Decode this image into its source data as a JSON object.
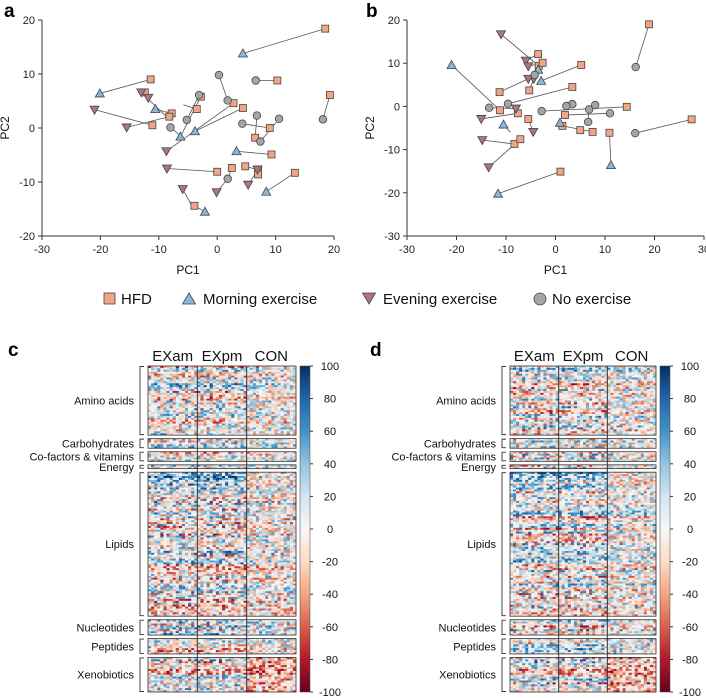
{
  "panel_letters": [
    "a",
    "b",
    "c",
    "d"
  ],
  "legend": {
    "items": [
      {
        "key": "hfd",
        "label": "HFD",
        "marker": "square",
        "color": "#F2A585"
      },
      {
        "key": "am",
        "label": "Morning exercise",
        "marker": "triangle-up",
        "color": "#89B7DA"
      },
      {
        "key": "pm",
        "label": "Evening exercise",
        "marker": "triangle-down",
        "color": "#A9777D"
      },
      {
        "key": "none",
        "label": "No exercise",
        "marker": "circle",
        "color": "#A5A5A5"
      }
    ]
  },
  "chart_data": [
    {
      "panel": "a",
      "type": "scatter",
      "xlabel": "PC1",
      "ylabel": "PC2",
      "xlim": [
        -30,
        20
      ],
      "ylim": [
        -20,
        20
      ],
      "xticks": [
        -30,
        -20,
        -10,
        0,
        10,
        20
      ],
      "yticks": [
        -20,
        -10,
        0,
        10,
        20
      ],
      "pairs": [
        [
          [
            -20.1,
            6.4
          ],
          [
            -11.4,
            9.0
          ]
        ],
        [
          [
            -11.8,
            5.6
          ],
          [
            -12.4,
            6.6
          ]
        ],
        [
          [
            -10.6,
            3.5
          ],
          [
            -7.8,
            2.7
          ]
        ],
        [
          [
            -21,
            3.4
          ],
          [
            -11.1,
            0.5
          ]
        ],
        [
          [
            -15.5,
            0.1
          ],
          [
            -8.2,
            2.1
          ]
        ],
        [
          [
            -13,
            6.6
          ],
          [
            -8.4,
            1.8
          ]
        ],
        [
          [
            -3.5,
            3.5
          ],
          [
            -5.8,
            4.3
          ]
        ],
        [
          [
            -2.8,
            5.8
          ],
          [
            -6.3,
            -1.6
          ]
        ],
        [
          [
            -3.1,
            6.1
          ],
          [
            -5.2,
            1.5
          ]
        ],
        [
          [
            -8,
            0.1
          ],
          [
            -6.2,
            -1.5
          ]
        ],
        [
          [
            -3.8,
            -0.6
          ],
          [
            4.4,
            3.7
          ]
        ],
        [
          [
            0.3,
            9.8
          ],
          [
            1.8,
            5.1
          ]
        ],
        [
          [
            -8.7,
            -4.3
          ],
          [
            2.8,
            4.6
          ]
        ],
        [
          [
            4.4,
            13.8
          ],
          [
            18.5,
            18.4
          ]
        ],
        [
          [
            6.6,
            8.8
          ],
          [
            10.3,
            8.8
          ]
        ],
        [
          [
            6.8,
            2.3
          ],
          [
            6.5,
            -1.8
          ]
        ],
        [
          [
            -8.6,
            -7.5
          ],
          [
            0.0,
            -8.1
          ]
        ],
        [
          [
            3.3,
            -4.3
          ],
          [
            9.3,
            -4.9
          ]
        ],
        [
          [
            4.3,
            0.8
          ],
          [
            9.0,
            0.0
          ]
        ],
        [
          [
            7.4,
            -2.5
          ],
          [
            10.6,
            1.7
          ]
        ],
        [
          [
            -5.9,
            -11.3
          ],
          [
            -4.3,
            -14.5
          ]
        ],
        [
          [
            -0.1,
            -11.9
          ],
          [
            1.8,
            -9.4
          ]
        ],
        [
          [
            1.8,
            -9.4
          ],
          [
            2.5,
            -7.4
          ]
        ],
        [
          [
            8.4,
            -11.8
          ],
          [
            13.3,
            -8.3
          ]
        ],
        [
          [
            6.9,
            -7.7
          ],
          [
            4.8,
            -7.1
          ]
        ],
        [
          [
            5.3,
            -10.5
          ],
          [
            7.0,
            -7.7
          ]
        ],
        [
          [
            -2.1,
            -15.5
          ],
          [
            -3.9,
            -14.4
          ]
        ],
        [
          [
            19.3,
            6.1
          ],
          [
            18.1,
            1.6
          ]
        ]
      ],
      "points": [
        {
          "x": -11.4,
          "y": 9.0,
          "g": "hfd"
        },
        {
          "x": -12.4,
          "y": 6.6,
          "g": "hfd"
        },
        {
          "x": -7.8,
          "y": 2.7,
          "g": "hfd"
        },
        {
          "x": -11.1,
          "y": 0.5,
          "g": "hfd"
        },
        {
          "x": -8.2,
          "y": 2.1,
          "g": "hfd"
        },
        {
          "x": -3.5,
          "y": 3.5,
          "g": "hfd"
        },
        {
          "x": -2.8,
          "y": 5.8,
          "g": "hfd"
        },
        {
          "x": 4.4,
          "y": 3.7,
          "g": "hfd"
        },
        {
          "x": 2.8,
          "y": 4.6,
          "g": "hfd"
        },
        {
          "x": 18.5,
          "y": 18.4,
          "g": "hfd"
        },
        {
          "x": 10.3,
          "y": 8.8,
          "g": "hfd"
        },
        {
          "x": 6.5,
          "y": -1.8,
          "g": "hfd"
        },
        {
          "x": 0.0,
          "y": -8.1,
          "g": "hfd"
        },
        {
          "x": 9.3,
          "y": -4.9,
          "g": "hfd"
        },
        {
          "x": 9.0,
          "y": 0.0,
          "g": "hfd"
        },
        {
          "x": -3.9,
          "y": -14.4,
          "g": "hfd"
        },
        {
          "x": 2.5,
          "y": -7.4,
          "g": "hfd"
        },
        {
          "x": 13.3,
          "y": -8.3,
          "g": "hfd"
        },
        {
          "x": 7.0,
          "y": -7.7,
          "g": "hfd"
        },
        {
          "x": 7.0,
          "y": -8.6,
          "g": "hfd"
        },
        {
          "x": 19.3,
          "y": 6.1,
          "g": "hfd"
        },
        {
          "x": 4.8,
          "y": -7.1,
          "g": "hfd"
        },
        {
          "x": -20.1,
          "y": 6.4,
          "g": "am"
        },
        {
          "x": -10.6,
          "y": 3.5,
          "g": "am"
        },
        {
          "x": -6.3,
          "y": -1.6,
          "g": "am"
        },
        {
          "x": -3.8,
          "y": -0.6,
          "g": "am"
        },
        {
          "x": 4.4,
          "y": 13.8,
          "g": "am"
        },
        {
          "x": 3.3,
          "y": -4.3,
          "g": "am"
        },
        {
          "x": 8.4,
          "y": -11.8,
          "g": "am"
        },
        {
          "x": -2.1,
          "y": -15.5,
          "g": "am"
        },
        {
          "x": -13.0,
          "y": 6.6,
          "g": "pm"
        },
        {
          "x": -11.8,
          "y": 5.6,
          "g": "pm"
        },
        {
          "x": -21.0,
          "y": 3.4,
          "g": "pm"
        },
        {
          "x": -15.5,
          "y": 0.1,
          "g": "pm"
        },
        {
          "x": -8.7,
          "y": -4.3,
          "g": "pm"
        },
        {
          "x": -8.6,
          "y": -7.5,
          "g": "pm"
        },
        {
          "x": -5.9,
          "y": -11.3,
          "g": "pm"
        },
        {
          "x": -0.1,
          "y": -11.9,
          "g": "pm"
        },
        {
          "x": 5.3,
          "y": -10.5,
          "g": "pm"
        },
        {
          "x": 6.9,
          "y": -7.7,
          "g": "pm"
        },
        {
          "x": 0.3,
          "y": 9.8,
          "g": "none"
        },
        {
          "x": -3.1,
          "y": 6.1,
          "g": "none"
        },
        {
          "x": -5.2,
          "y": 1.5,
          "g": "none"
        },
        {
          "x": -8.0,
          "y": 0.1,
          "g": "none"
        },
        {
          "x": 1.8,
          "y": 5.1,
          "g": "none"
        },
        {
          "x": 6.6,
          "y": 8.8,
          "g": "none"
        },
        {
          "x": 6.8,
          "y": 2.3,
          "g": "none"
        },
        {
          "x": 7.4,
          "y": -2.5,
          "g": "none"
        },
        {
          "x": 10.6,
          "y": 1.7,
          "g": "none"
        },
        {
          "x": 4.3,
          "y": 0.8,
          "g": "none"
        },
        {
          "x": 1.8,
          "y": -9.4,
          "g": "none"
        },
        {
          "x": 18.1,
          "y": 1.6,
          "g": "none"
        }
      ]
    },
    {
      "panel": "b",
      "type": "scatter",
      "xlabel": "PC1",
      "ylabel": "PC2",
      "xlim": [
        -30,
        30
      ],
      "ylim": [
        -30,
        20
      ],
      "xticks": [
        -30,
        -20,
        -10,
        0,
        10,
        20,
        30
      ],
      "yticks": [
        -30,
        -20,
        -10,
        0,
        10,
        20
      ],
      "pairs": [
        [
          [
            -21,
            9.6
          ],
          [
            -11.2,
            -0.9
          ]
        ],
        [
          [
            -11,
            16.7
          ],
          [
            -3.4,
            9.4
          ]
        ],
        [
          [
            -6.0,
            10.6
          ],
          [
            -3.5,
            12.1
          ]
        ],
        [
          [
            -5.5,
            9.3
          ],
          [
            -2.6,
            10.1
          ]
        ],
        [
          [
            -3.5,
            8.5
          ],
          [
            -4.2,
            7.3
          ]
        ],
        [
          [
            -4.4,
            6.4
          ],
          [
            -5.3,
            3.7
          ]
        ],
        [
          [
            -2.9,
            5.9
          ],
          [
            5.2,
            9.6
          ]
        ],
        [
          [
            -5.5,
            6.4
          ],
          [
            -11.3,
            3.3
          ]
        ],
        [
          [
            -9.6,
            0.6
          ],
          [
            3.4,
            4.5
          ]
        ],
        [
          [
            -15,
            -2.9
          ],
          [
            -7.6,
            -1.6
          ]
        ],
        [
          [
            -13.4,
            -0.3
          ],
          [
            -8.0,
            -0.5
          ]
        ],
        [
          [
            -2.8,
            -1.1
          ],
          [
            14.4,
            -0.1
          ]
        ],
        [
          [
            -4.5,
            -5.9
          ],
          [
            -5.5,
            -2.9
          ]
        ],
        [
          [
            -10.5,
            -4.2
          ],
          [
            -9.1,
            -6.0
          ]
        ],
        [
          [
            -14.8,
            -7.8
          ],
          [
            -8.3,
            -8.7
          ]
        ],
        [
          [
            -13.5,
            -14.1
          ],
          [
            -7.1,
            -7.6
          ]
        ],
        [
          [
            -11.6,
            -20.2
          ],
          [
            1.0,
            -15.1
          ]
        ],
        [
          [
            1.4,
            -4.5
          ],
          [
            7.5,
            -5.9
          ]
        ],
        [
          [
            6.6,
            -3.6
          ],
          [
            6.8,
            -0.7
          ]
        ],
        [
          [
            11.0,
            -1.6
          ],
          [
            1.9,
            -2.0
          ]
        ],
        [
          [
            11.2,
            -13.6
          ],
          [
            10.9,
            -6.1
          ]
        ],
        [
          [
            16.2,
            9.1
          ],
          [
            18.9,
            19.0
          ]
        ],
        [
          [
            16.1,
            -6.2
          ],
          [
            27.5,
            -3.0
          ]
        ],
        [
          [
            3.4,
            0.5
          ],
          [
            2.2,
            0.1
          ]
        ]
      ],
      "points": [
        {
          "x": -11.2,
          "y": -0.9,
          "g": "hfd"
        },
        {
          "x": -3.4,
          "y": 9.4,
          "g": "hfd"
        },
        {
          "x": -3.5,
          "y": 12.1,
          "g": "hfd"
        },
        {
          "x": -2.6,
          "y": 10.1,
          "g": "hfd"
        },
        {
          "x": 5.2,
          "y": 9.6,
          "g": "hfd"
        },
        {
          "x": -11.3,
          "y": 3.3,
          "g": "hfd"
        },
        {
          "x": 3.4,
          "y": 4.5,
          "g": "hfd"
        },
        {
          "x": -7.6,
          "y": -1.6,
          "g": "hfd"
        },
        {
          "x": 14.4,
          "y": -0.1,
          "g": "hfd"
        },
        {
          "x": -5.5,
          "y": -2.9,
          "g": "hfd"
        },
        {
          "x": -8.3,
          "y": -8.7,
          "g": "hfd"
        },
        {
          "x": -7.1,
          "y": -7.6,
          "g": "hfd"
        },
        {
          "x": 1.0,
          "y": -15.1,
          "g": "hfd"
        },
        {
          "x": 7.5,
          "y": -5.9,
          "g": "hfd"
        },
        {
          "x": 10.9,
          "y": -6.1,
          "g": "hfd"
        },
        {
          "x": 18.9,
          "y": 19.0,
          "g": "hfd"
        },
        {
          "x": 27.5,
          "y": -3.0,
          "g": "hfd"
        },
        {
          "x": -5.3,
          "y": 3.7,
          "g": "hfd"
        },
        {
          "x": 1.9,
          "y": -2.0,
          "g": "hfd"
        },
        {
          "x": 1.4,
          "y": -4.5,
          "g": "hfd"
        },
        {
          "x": 5.0,
          "y": -5.5,
          "g": "hfd"
        },
        {
          "x": -21.0,
          "y": 9.6,
          "g": "am"
        },
        {
          "x": -3.5,
          "y": 8.5,
          "g": "am"
        },
        {
          "x": -2.9,
          "y": 5.9,
          "g": "am"
        },
        {
          "x": -10.5,
          "y": -4.2,
          "g": "am"
        },
        {
          "x": -11.6,
          "y": -20.2,
          "g": "am"
        },
        {
          "x": 11.2,
          "y": -13.6,
          "g": "am"
        },
        {
          "x": 0.9,
          "y": -3.8,
          "g": "am"
        },
        {
          "x": -11.0,
          "y": 16.7,
          "g": "pm"
        },
        {
          "x": -6.0,
          "y": 10.6,
          "g": "pm"
        },
        {
          "x": -5.5,
          "y": 9.3,
          "g": "pm"
        },
        {
          "x": -4.4,
          "y": 6.4,
          "g": "pm"
        },
        {
          "x": -5.5,
          "y": 6.4,
          "g": "pm"
        },
        {
          "x": -15.0,
          "y": -2.9,
          "g": "pm"
        },
        {
          "x": -4.5,
          "y": -5.9,
          "g": "pm"
        },
        {
          "x": -14.8,
          "y": -7.8,
          "g": "pm"
        },
        {
          "x": -13.5,
          "y": -14.1,
          "g": "pm"
        },
        {
          "x": -8.0,
          "y": -0.5,
          "g": "pm"
        },
        {
          "x": -9.6,
          "y": 0.6,
          "g": "none"
        },
        {
          "x": -13.4,
          "y": -0.3,
          "g": "none"
        },
        {
          "x": -2.8,
          "y": -1.1,
          "g": "none"
        },
        {
          "x": 3.4,
          "y": 0.5,
          "g": "none"
        },
        {
          "x": 2.2,
          "y": 0.1,
          "g": "none"
        },
        {
          "x": 6.6,
          "y": -3.6,
          "g": "none"
        },
        {
          "x": 6.8,
          "y": -0.7,
          "g": "none"
        },
        {
          "x": 11.0,
          "y": -1.6,
          "g": "none"
        },
        {
          "x": 16.2,
          "y": 9.1,
          "g": "none"
        },
        {
          "x": 16.1,
          "y": -6.2,
          "g": "none"
        },
        {
          "x": 8.0,
          "y": 0.3,
          "g": "none"
        },
        {
          "x": -4.2,
          "y": 7.3,
          "g": "none"
        }
      ]
    },
    {
      "panel": "c",
      "type": "heatmap",
      "columns": [
        "EXam",
        "EXpm",
        "CON"
      ],
      "categories": [
        {
          "label": "Amino acids",
          "rows": 36
        },
        {
          "label": "Carbohydrates",
          "rows": 5
        },
        {
          "label": "Co-factors & vitamins",
          "rows": 5
        },
        {
          "label": "Energy",
          "rows": 2
        },
        {
          "label": "Lipids",
          "rows": 75
        },
        {
          "label": "Nucleotides",
          "rows": 8
        },
        {
          "label": "Peptides",
          "rows": 8
        },
        {
          "label": "Xenobiotics",
          "rows": 18
        }
      ],
      "colorbar": {
        "min": -100,
        "max": 100,
        "ticks": [
          100,
          80,
          60,
          40,
          20,
          0,
          -20,
          -40,
          -60,
          -80,
          -100
        ]
      }
    },
    {
      "panel": "d",
      "type": "heatmap",
      "columns": [
        "EXam",
        "EXpm",
        "CON"
      ],
      "categories": [
        {
          "label": "Amino acids",
          "rows": 36
        },
        {
          "label": "Carbohydrates",
          "rows": 5
        },
        {
          "label": "Co-factors & vitamins",
          "rows": 5
        },
        {
          "label": "Energy",
          "rows": 2
        },
        {
          "label": "Lipids",
          "rows": 75
        },
        {
          "label": "Nucleotides",
          "rows": 8
        },
        {
          "label": "Peptides",
          "rows": 8
        },
        {
          "label": "Xenobiotics",
          "rows": 18
        }
      ],
      "colorbar": {
        "min": -100,
        "max": 100,
        "ticks": [
          100,
          80,
          60,
          40,
          20,
          0,
          -20,
          -40,
          -60,
          -80,
          -100
        ]
      }
    }
  ]
}
